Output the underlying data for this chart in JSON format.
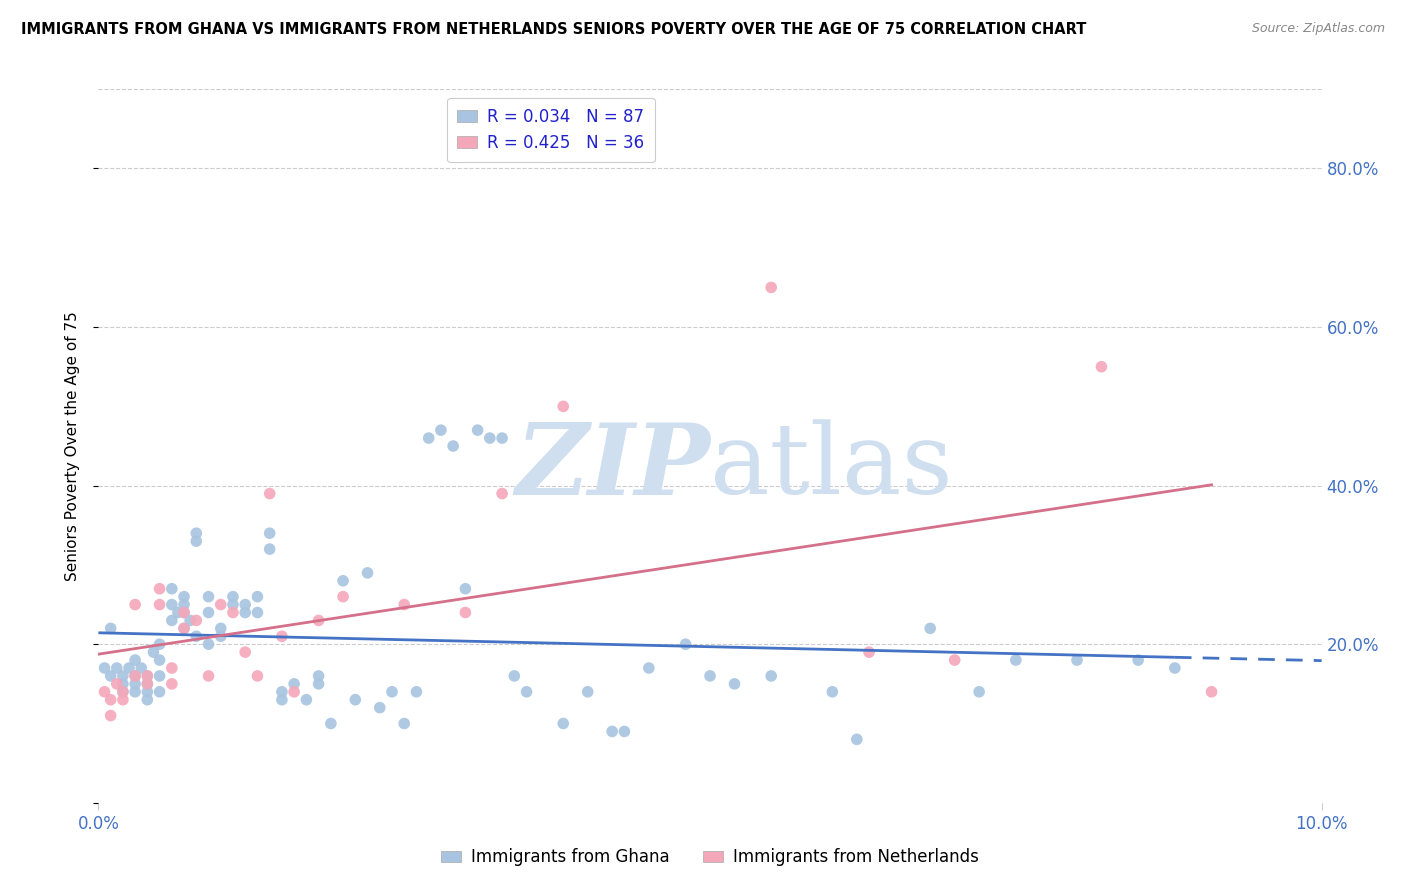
{
  "title": "IMMIGRANTS FROM GHANA VS IMMIGRANTS FROM NETHERLANDS SENIORS POVERTY OVER THE AGE OF 75 CORRELATION CHART",
  "source": "Source: ZipAtlas.com",
  "ylabel": "Seniors Poverty Over the Age of 75",
  "xlabel_ghana": "Immigrants from Ghana",
  "xlabel_netherlands": "Immigrants from Netherlands",
  "R_ghana": 0.034,
  "N_ghana": 87,
  "R_netherlands": 0.425,
  "N_netherlands": 36,
  "color_ghana": "#a8c4e0",
  "color_netherlands": "#f4a7b9",
  "regression_color_ghana": "#4472c4",
  "regression_color_netherlands": "#d4708a",
  "watermark_color": "#d0dff0",
  "xlim": [
    0.0,
    0.1
  ],
  "ylim": [
    0.0,
    0.9
  ],
  "ghana_x": [
    0.0005,
    0.001,
    0.001,
    0.0015,
    0.002,
    0.002,
    0.002,
    0.0025,
    0.003,
    0.003,
    0.003,
    0.003,
    0.0035,
    0.004,
    0.004,
    0.004,
    0.004,
    0.0045,
    0.005,
    0.005,
    0.005,
    0.005,
    0.006,
    0.006,
    0.006,
    0.0065,
    0.007,
    0.007,
    0.007,
    0.007,
    0.0075,
    0.008,
    0.008,
    0.008,
    0.009,
    0.009,
    0.009,
    0.01,
    0.01,
    0.011,
    0.011,
    0.012,
    0.012,
    0.013,
    0.013,
    0.014,
    0.014,
    0.015,
    0.015,
    0.016,
    0.017,
    0.018,
    0.018,
    0.019,
    0.02,
    0.021,
    0.022,
    0.023,
    0.024,
    0.025,
    0.026,
    0.027,
    0.028,
    0.029,
    0.03,
    0.031,
    0.032,
    0.033,
    0.034,
    0.035,
    0.038,
    0.04,
    0.042,
    0.043,
    0.045,
    0.048,
    0.05,
    0.052,
    0.055,
    0.06,
    0.062,
    0.068,
    0.072,
    0.075,
    0.08,
    0.085,
    0.088
  ],
  "ghana_y": [
    0.17,
    0.22,
    0.16,
    0.17,
    0.15,
    0.16,
    0.14,
    0.17,
    0.16,
    0.18,
    0.14,
    0.15,
    0.17,
    0.14,
    0.15,
    0.13,
    0.16,
    0.19,
    0.14,
    0.16,
    0.18,
    0.2,
    0.23,
    0.25,
    0.27,
    0.24,
    0.22,
    0.26,
    0.24,
    0.25,
    0.23,
    0.21,
    0.34,
    0.33,
    0.24,
    0.26,
    0.2,
    0.22,
    0.21,
    0.25,
    0.26,
    0.24,
    0.25,
    0.26,
    0.24,
    0.34,
    0.32,
    0.14,
    0.13,
    0.15,
    0.13,
    0.16,
    0.15,
    0.1,
    0.28,
    0.13,
    0.29,
    0.12,
    0.14,
    0.1,
    0.14,
    0.46,
    0.47,
    0.45,
    0.27,
    0.47,
    0.46,
    0.46,
    0.16,
    0.14,
    0.1,
    0.14,
    0.09,
    0.09,
    0.17,
    0.2,
    0.16,
    0.15,
    0.16,
    0.14,
    0.08,
    0.22,
    0.14,
    0.18,
    0.18,
    0.18,
    0.17
  ],
  "netherlands_x": [
    0.0005,
    0.001,
    0.001,
    0.0015,
    0.002,
    0.002,
    0.003,
    0.003,
    0.004,
    0.004,
    0.005,
    0.005,
    0.006,
    0.006,
    0.007,
    0.007,
    0.008,
    0.009,
    0.01,
    0.011,
    0.012,
    0.013,
    0.014,
    0.015,
    0.016,
    0.018,
    0.02,
    0.025,
    0.03,
    0.033,
    0.038,
    0.055,
    0.063,
    0.07,
    0.082,
    0.091
  ],
  "netherlands_y": [
    0.14,
    0.13,
    0.11,
    0.15,
    0.14,
    0.13,
    0.16,
    0.25,
    0.16,
    0.15,
    0.25,
    0.27,
    0.17,
    0.15,
    0.22,
    0.24,
    0.23,
    0.16,
    0.25,
    0.24,
    0.19,
    0.16,
    0.39,
    0.21,
    0.14,
    0.23,
    0.26,
    0.25,
    0.24,
    0.39,
    0.5,
    0.65,
    0.19,
    0.18,
    0.55,
    0.14
  ]
}
